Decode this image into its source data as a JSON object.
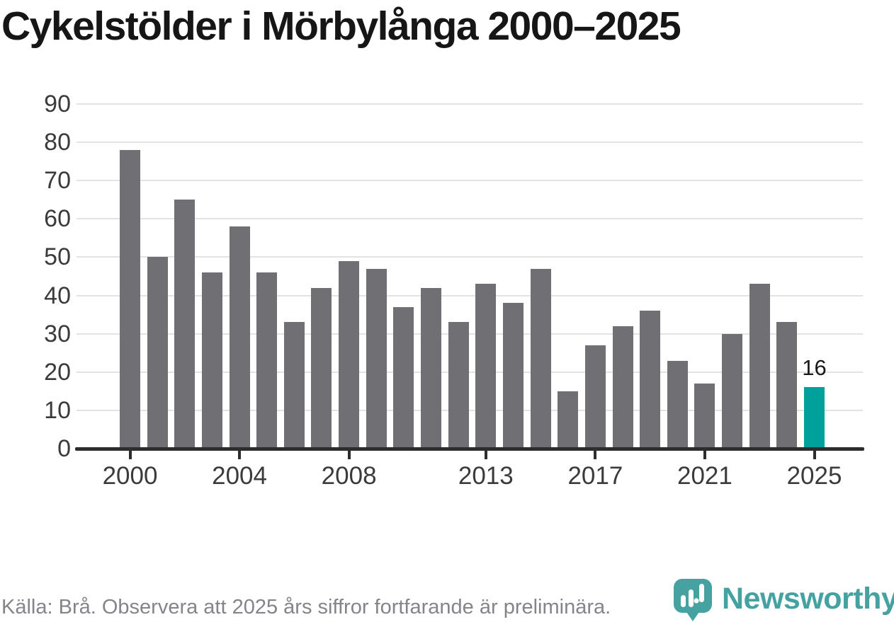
{
  "title": "Cykelstölder i Mörbylånga 2000–2025",
  "footer": {
    "source_note": "Källa: Brå. Observera att 2025 års siffror fortfarande är preliminära."
  },
  "branding": {
    "name": "Newsworthy",
    "logo_icon": "bar-chart-speech-bubble-pin-icon"
  },
  "colors": {
    "bar": "#6f6f74",
    "highlight": "#00a09b",
    "grid": "#e3e3e3",
    "axis": "#2d2d2d",
    "tick_label": "#3b3b3b",
    "annotation": "#191919",
    "title": "#161616",
    "footer_text": "#84858b",
    "logo": "#46a2a1"
  },
  "chart_data": {
    "type": "bar",
    "title": "Cykelstölder i Mörbylånga 2000–2025",
    "xlabel": "",
    "ylabel": "",
    "x": [
      2000,
      2001,
      2002,
      2003,
      2004,
      2005,
      2006,
      2007,
      2008,
      2009,
      2010,
      2011,
      2012,
      2013,
      2014,
      2015,
      2016,
      2017,
      2018,
      2019,
      2020,
      2021,
      2022,
      2023,
      2024,
      2025
    ],
    "values": [
      78,
      50,
      65,
      46,
      58,
      46,
      33,
      42,
      49,
      47,
      37,
      42,
      33,
      43,
      38,
      47,
      15,
      27,
      32,
      36,
      23,
      17,
      30,
      43,
      33,
      16
    ],
    "highlight_index": 25,
    "highlight_value_label": "16",
    "ylim": [
      0,
      90
    ],
    "yticks": [
      0,
      10,
      20,
      30,
      40,
      50,
      60,
      70,
      80,
      90
    ],
    "xticks": [
      2000,
      2004,
      2008,
      2013,
      2017,
      2021,
      2025
    ],
    "grid": "horizontal",
    "legend": "none"
  }
}
